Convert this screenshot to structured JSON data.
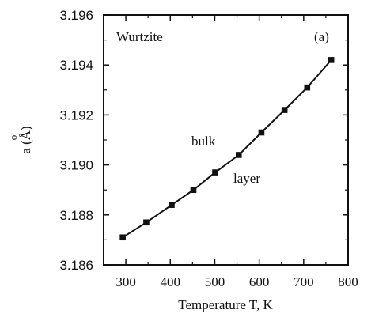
{
  "chart_data": {
    "type": "line",
    "xlabel": "Temperature T, K",
    "ylabel": "a (Å)",
    "ylabel_overmark": "o",
    "xlim": [
      250,
      800
    ],
    "ylim": [
      3.186,
      3.196
    ],
    "x_ticks": [
      "300",
      "400",
      "500",
      "600",
      "700",
      "800"
    ],
    "x_tick_values": [
      300,
      400,
      500,
      600,
      700,
      800
    ],
    "y_ticks": [
      "3.186",
      "3.188",
      "3.190",
      "3.192",
      "3.194",
      "3.196"
    ],
    "y_tick_values": [
      3.186,
      3.188,
      3.19,
      3.192,
      3.194,
      3.196
    ],
    "series": [
      {
        "marker": "square",
        "x": [
          293,
          346,
          403,
          452,
          501,
          554,
          605,
          657,
          708,
          762
        ],
        "y": [
          3.1871,
          3.1877,
          3.1884,
          3.189,
          3.1897,
          3.1904,
          3.1913,
          3.1922,
          3.1931,
          3.1942
        ]
      }
    ],
    "annotations": {
      "material": "Wurtzite",
      "panel": "(a)",
      "curve_upper": "bulk",
      "curve_lower": "layer"
    },
    "grid": false,
    "color": "#111111"
  }
}
